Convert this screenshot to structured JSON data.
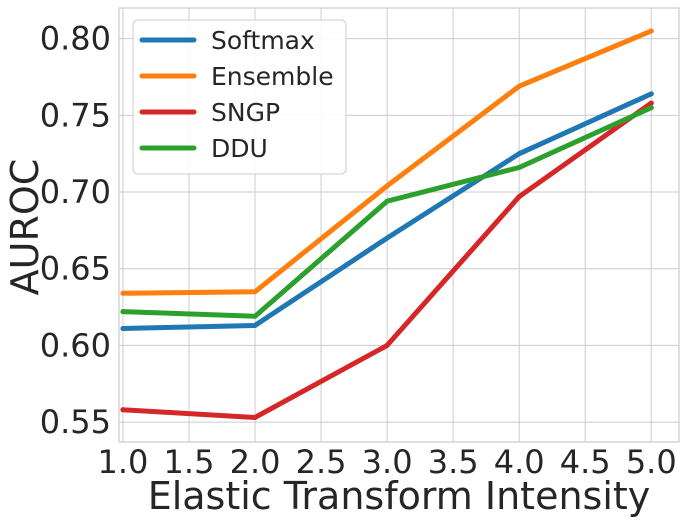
{
  "chart_data": {
    "type": "line",
    "xlabel": "Elastic Transform Intensity",
    "ylabel": "AUROC",
    "x": [
      1.0,
      2.0,
      3.0,
      4.0,
      5.0
    ],
    "xlim": [
      0.97,
      5.21
    ],
    "ylim": [
      0.537,
      0.82
    ],
    "xticks": [
      1.0,
      1.5,
      2.0,
      2.5,
      3.0,
      3.5,
      4.0,
      4.5,
      5.0
    ],
    "xtick_labels": [
      "1.0",
      "1.5",
      "2.0",
      "2.5",
      "3.0",
      "3.5",
      "4.0",
      "4.5",
      "5.0"
    ],
    "yticks": [
      0.55,
      0.6,
      0.65,
      0.7,
      0.75,
      0.8
    ],
    "ytick_labels": [
      "0.55",
      "0.60",
      "0.65",
      "0.70",
      "0.75",
      "0.80"
    ],
    "grid": true,
    "legend_position": "top-left",
    "series": [
      {
        "name": "Softmax",
        "color": "#1f77b4",
        "values": [
          0.611,
          0.613,
          0.67,
          0.725,
          0.764
        ]
      },
      {
        "name": "Ensemble",
        "color": "#ff7f0e",
        "values": [
          0.634,
          0.635,
          0.704,
          0.769,
          0.805
        ]
      },
      {
        "name": "SNGP",
        "color": "#d62728",
        "values": [
          0.558,
          0.553,
          0.6,
          0.697,
          0.758
        ]
      },
      {
        "name": "DDU",
        "color": "#2ca02c",
        "values": [
          0.622,
          0.619,
          0.694,
          0.716,
          0.755
        ]
      }
    ]
  }
}
